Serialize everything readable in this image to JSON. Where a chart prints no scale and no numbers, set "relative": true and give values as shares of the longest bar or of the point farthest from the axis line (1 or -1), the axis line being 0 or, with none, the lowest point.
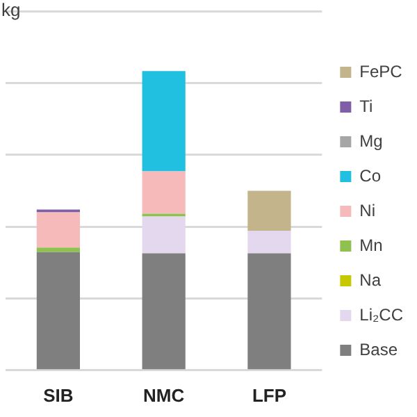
{
  "chart_data": {
    "type": "bar",
    "stacked": true,
    "relative": true,
    "ylabel": "kg",
    "categories": [
      "SIB",
      "NMC",
      "LFP"
    ],
    "grid": "y",
    "legend": "right",
    "series": [
      {
        "name": "Base",
        "color": "#7f7f7f",
        "values": [
          0.395,
          0.391,
          0.391
        ]
      },
      {
        "name": "Li₂CC",
        "color": "#e4d8ee",
        "values": [
          null,
          0.123,
          0.075
        ]
      },
      {
        "name": "Na",
        "color": "#c8c800",
        "values": [
          null,
          null,
          null
        ]
      },
      {
        "name": "Mn",
        "color": "#8fc050",
        "values": [
          0.015,
          0.009,
          null
        ]
      },
      {
        "name": "Ni",
        "color": "#f6baba",
        "values": [
          0.118,
          0.142,
          null
        ]
      },
      {
        "name": "Co",
        "color": "#22c0e0",
        "values": [
          null,
          0.335,
          null
        ]
      },
      {
        "name": "Mg",
        "color": "#a6a6a6",
        "values": [
          null,
          null,
          null
        ]
      },
      {
        "name": "Ti",
        "color": "#7f5fa8",
        "values": [
          0.009,
          null,
          null
        ]
      },
      {
        "name": "FePC",
        "color": "#c4b48c",
        "values": [
          null,
          null,
          0.134
        ]
      }
    ]
  }
}
